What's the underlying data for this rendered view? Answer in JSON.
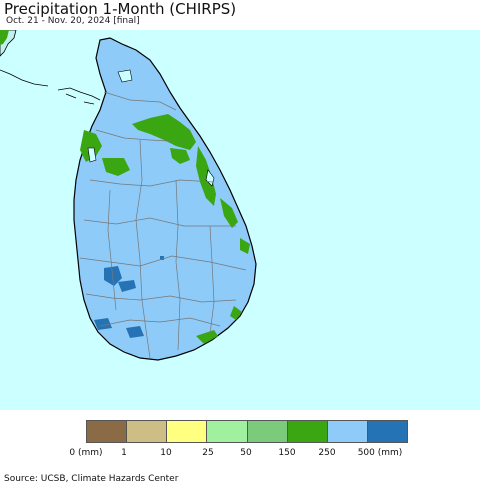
{
  "title": "Precipitation 1-Month (CHIRPS)",
  "subtitle": "Oct. 21 - Nov. 20, 2024 [final]",
  "colors": {
    "ocean": "#ccffff",
    "land_other": "#c0f0f0",
    "dominant_precip": "#8ecbf8",
    "band_150_250": "#3aa612",
    "band_500_plus": "#2572b5",
    "borders": "#777777",
    "coast": "#000000"
  },
  "legend": {
    "colors": [
      "#8b6b45",
      "#cfbd86",
      "#ffff80",
      "#a0f0a0",
      "#7ccb7c",
      "#3aa612",
      "#8ecbf8",
      "#2572b5"
    ],
    "labels": [
      "0 (mm)",
      "1",
      "10",
      "25",
      "50",
      "150",
      "250",
      "500 (mm)"
    ]
  },
  "source": "Source: UCSB, Climate Hazards Center"
}
